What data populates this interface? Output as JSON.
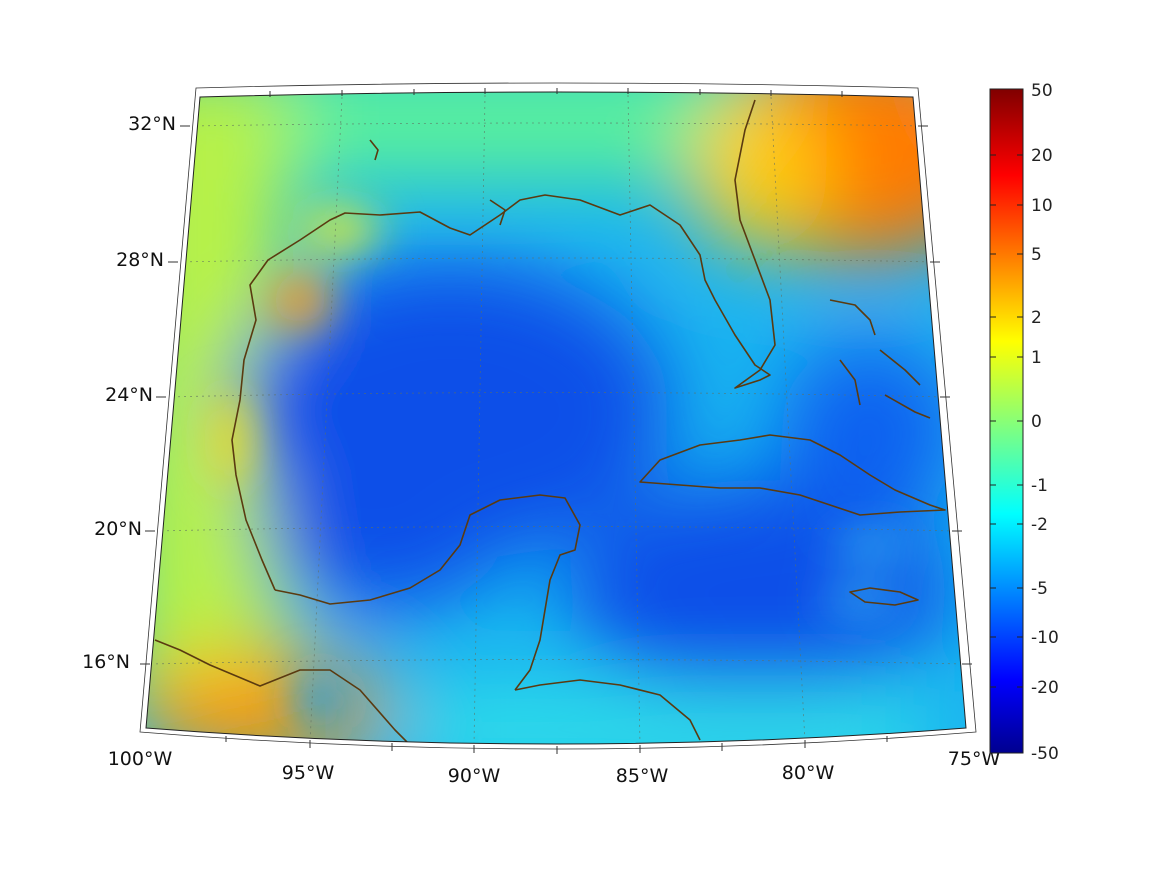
{
  "map": {
    "projection": "conic",
    "lon_range": [
      -100,
      -75
    ],
    "lat_range": [
      14,
      33
    ],
    "lon_ticks": [
      {
        "value": -100,
        "label": "100°W"
      },
      {
        "value": -95,
        "label": "95°W"
      },
      {
        "value": -90,
        "label": "90°W"
      },
      {
        "value": -85,
        "label": "85°W"
      },
      {
        "value": -80,
        "label": "80°W"
      },
      {
        "value": -75,
        "label": "75°W"
      }
    ],
    "lat_ticks": [
      {
        "value": 16,
        "label": "16°N"
      },
      {
        "value": 20,
        "label": "20°N"
      },
      {
        "value": 24,
        "label": "24°N"
      },
      {
        "value": 28,
        "label": "28°N"
      },
      {
        "value": 32,
        "label": "32°N"
      }
    ],
    "grid": true,
    "coastline_color": "#5a3a10"
  },
  "colorbar": {
    "colormap": "jet",
    "ticks": [
      "50",
      "20",
      "10",
      "5",
      "2",
      "1",
      "0",
      "-1",
      "-2",
      "-5",
      "-10",
      "-20",
      "-50"
    ]
  }
}
